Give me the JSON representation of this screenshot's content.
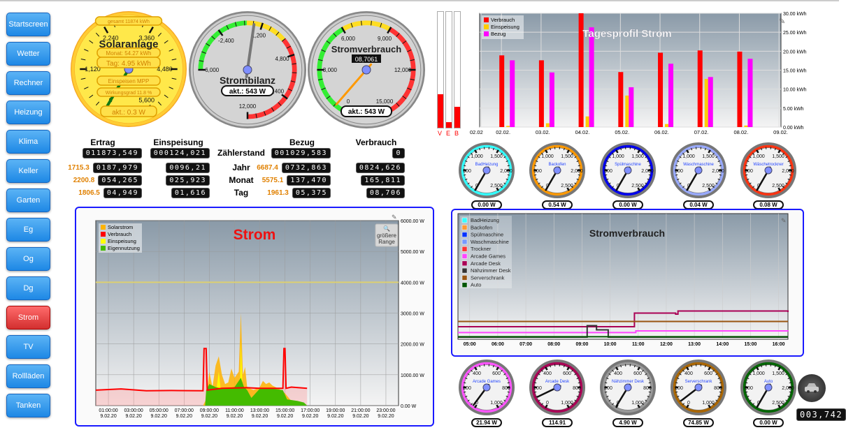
{
  "sidebar": {
    "items": [
      {
        "label": "Startscreen"
      },
      {
        "label": "Wetter"
      },
      {
        "label": "Rechner"
      },
      {
        "label": "Heizung"
      },
      {
        "label": "Klima"
      },
      {
        "label": "Keller"
      },
      {
        "label": "Garten"
      },
      {
        "label": "Eg"
      },
      {
        "label": "Og"
      },
      {
        "label": "Dg"
      },
      {
        "label": "Strom",
        "active": true
      },
      {
        "label": "TV"
      },
      {
        "label": "Rollläden"
      },
      {
        "label": "Tanken"
      }
    ]
  },
  "gauges": {
    "solar": {
      "title": "Solaranlage",
      "gesamt": "gesamt 11874 kWh",
      "monat": "Monat: 54.27 kWh",
      "tag": "Tag: 4.95 kWh",
      "mode": "Einspeisen MPP",
      "wirkungsgrad": "Wirkungsgrad 11.8 %",
      "akt": "akt.: 0.3 W",
      "value": 0.3,
      "min": 0,
      "max": 5600,
      "labels": [
        "0",
        "1,120",
        "2,240",
        "3,360",
        "4,480",
        "5,600"
      ]
    },
    "bilanz": {
      "title": "Strombilanz",
      "akt": "akt.: 543 W",
      "value": 543,
      "min": -6000,
      "max": 12000,
      "labels": [
        "-6,000",
        "-2,400",
        "1,200",
        "4,800",
        "8,400",
        "12,000"
      ]
    },
    "verbrauch": {
      "title": "Stromverbrauch",
      "counter": "08,7061",
      "akt": "akt.: 543 W",
      "value": 543,
      "min": 0,
      "max": 15000,
      "labels": [
        "0",
        "3,000",
        "6,000",
        "9,000",
        "12,000",
        "15,000"
      ]
    }
  },
  "veb": {
    "labels": [
      "V",
      "E",
      "B"
    ],
    "fill_percent": [
      29,
      5,
      18
    ],
    "color": "#ff0000"
  },
  "table": {
    "headers": {
      "ertrag": "Ertrag",
      "einspeisung": "Einspeisung",
      "bezug": "Bezug",
      "verbrauch": "Verbrauch"
    },
    "rows": [
      {
        "label": "Zählerstand",
        "ertrag_side": "",
        "ertrag": "011873,549",
        "einspeisung": "000124,021",
        "bezug_side": "",
        "bezug": "001029,583",
        "verbrauch": "0"
      },
      {
        "label": "Jahr",
        "ertrag_side": "1715.3",
        "ertrag": "0187,979",
        "einspeisung": "0096,21",
        "bezug_side": "6687.4",
        "bezug": "0732,863",
        "verbrauch": "0824,626"
      },
      {
        "label": "Monat",
        "ertrag_side": "2200.8",
        "ertrag": "054,265",
        "einspeisung": "025,923",
        "bezug_side": "5575.1",
        "bezug": "137,470",
        "verbrauch": "165,811"
      },
      {
        "label": "Tag",
        "ertrag_side": "1806.5",
        "ertrag": "04,949",
        "einspeisung": "01,616",
        "bezug_side": "1961.3",
        "bezug": "05,375",
        "verbrauch": "08,706"
      }
    ]
  },
  "devices": [
    {
      "name": "BadHeizung",
      "value_label": "0.00 W",
      "value": 0,
      "max": 2500,
      "ring": "#33ffff",
      "labels": [
        "0",
        "500",
        "1,000",
        "1,500",
        "2,000",
        "2,500"
      ]
    },
    {
      "name": "Backofen",
      "value_label": "0.54 W",
      "value": 0.54,
      "max": 2500,
      "ring": "#ff9900",
      "labels": [
        "0",
        "500",
        "1,000",
        "1,500",
        "2,000",
        "2,500"
      ]
    },
    {
      "name": "Spülmaschine",
      "value_label": "0.00 W",
      "value": 0,
      "max": 2500,
      "ring": "#0000ee",
      "labels": [
        "0",
        "500",
        "1,000",
        "1,500",
        "2,000",
        "2,500"
      ]
    },
    {
      "name": "Waschmaschine",
      "value_label": "0.04 W",
      "value": 0.04,
      "max": 2500,
      "ring": "#99aaff",
      "labels": [
        "0",
        "500",
        "1,000",
        "1,500",
        "2,000",
        "2,500"
      ]
    },
    {
      "name": "Wäschetrockner",
      "value_label": "0.08 W",
      "value": 0.08,
      "max": 2500,
      "ring": "#ff3311",
      "labels": [
        "0",
        "500",
        "1,000",
        "1,500",
        "2,000",
        "2,500"
      ]
    },
    {
      "name": "Arcade Games",
      "value_label": "21.94 W",
      "value": 21.94,
      "max": 1000,
      "ring": "#ff55ff",
      "labels": [
        "0",
        "200",
        "400",
        "600",
        "800",
        "1,000"
      ]
    },
    {
      "name": "Arcade Desk",
      "value_label": "114.91",
      "value": 114.91,
      "max": 1000,
      "ring": "#aa0055",
      "labels": [
        "0",
        "200",
        "400",
        "600",
        "800",
        "1,000"
      ]
    },
    {
      "name": "Nähzimmer Desk",
      "value_label": "4.90 W",
      "value": 4.9,
      "max": 1000,
      "ring": "#999999",
      "labels": [
        "0",
        "200",
        "400",
        "600",
        "800",
        "1,000"
      ]
    },
    {
      "name": "Serverschrank",
      "value_label": "74.85 W",
      "value": 74.85,
      "max": 1000,
      "ring": "#aa6600",
      "labels": [
        "0",
        "200",
        "400",
        "600",
        "800",
        "1,000"
      ]
    },
    {
      "name": "Auto",
      "value_label": "0.00 W",
      "value": 0,
      "max": 2500,
      "ring": "#006600",
      "labels": [
        "0",
        "500",
        "1,000",
        "1,500",
        "2,000",
        "2,500"
      ]
    }
  ],
  "auto_counter": "003,742",
  "icons": {
    "car": "car-icon",
    "edit": "pencil-icon",
    "zoom": "magnifier-icon"
  },
  "chart_data": [
    {
      "type": "bar",
      "title": "Tagesprofil Strom",
      "categories": [
        "02.02.",
        "03.02.",
        "04.02.",
        "05.02.",
        "06.02.",
        "07.02.",
        "08.02."
      ],
      "x_tick_labels": [
        "02.02",
        "02.02.",
        "03.02.",
        "04.02.",
        "05.02.",
        "06.02.",
        "07.02.",
        "08.02.",
        "09.02."
      ],
      "series": [
        {
          "name": "Verbrauch",
          "color": "#ff0000",
          "values": [
            18.9,
            17.6,
            30.0,
            14.5,
            19.6,
            20.2,
            19.9
          ]
        },
        {
          "name": "Einspeisung",
          "color": "#ffcc00",
          "values": [
            0.3,
            1.0,
            2.8,
            8.3,
            0.8,
            12.7,
            0.4
          ]
        },
        {
          "name": "Bezug",
          "color": "#ff00ff",
          "values": [
            17.6,
            14.4,
            26.3,
            10.5,
            16.7,
            13.2,
            18.0
          ]
        }
      ],
      "ylim": [
        0,
        30
      ],
      "y_ticks": [
        "0.00 kWh",
        "5.00 kWh",
        "10.00 kWh",
        "15.00 kWh",
        "20.00 kWh",
        "25.00 kWh",
        "30.00 kWh"
      ],
      "legend": "top-left",
      "grid": true
    },
    {
      "type": "area",
      "title": "Strom",
      "button": "größere Range",
      "ylim": [
        0,
        6000
      ],
      "y_ticks": [
        "0.00 W",
        "1000.00 W",
        "2000.00 W",
        "3000.00 W",
        "4000.00 W",
        "5000.00 W",
        "6000.00 W"
      ],
      "x_ticks": [
        [
          "01:00:00",
          "9.02.20"
        ],
        [
          "03:00:00",
          "9.02.20"
        ],
        [
          "05:00:00",
          "9.02.20"
        ],
        [
          "07:00:00",
          "9.02.20"
        ],
        [
          "09:00:00",
          "9.02.20"
        ],
        [
          "11:00:00",
          "9.02.20"
        ],
        [
          "13:00:00",
          "9.02.20"
        ],
        [
          "15:00:00",
          "9.02.20"
        ],
        [
          "17:00:00",
          "9.02.20"
        ],
        [
          "19:00:00",
          "9.02.20"
        ],
        [
          "21:00:00",
          "9.02.20"
        ],
        [
          "23:00:00",
          "9.02.20"
        ]
      ],
      "xlim": [
        "00:00",
        "24:00"
      ],
      "threshold": 4000,
      "legend": "top-left",
      "grid": true,
      "series": [
        {
          "name": "Solarstrom",
          "color": "#ffb300",
          "points": [
            [
              "00:00",
              0
            ],
            [
              "08:30",
              0
            ],
            [
              "08:45",
              200
            ],
            [
              "09:00",
              1100
            ],
            [
              "09:15",
              600
            ],
            [
              "09:30",
              1300
            ],
            [
              "09:45",
              1600
            ],
            [
              "10:00",
              1000
            ],
            [
              "10:15",
              700
            ],
            [
              "10:30",
              750
            ],
            [
              "10:45",
              1200
            ],
            [
              "11:00",
              900
            ],
            [
              "11:20",
              1100
            ],
            [
              "11:30",
              3000
            ],
            [
              "11:40",
              1000
            ],
            [
              "11:50",
              1250
            ],
            [
              "12:00",
              600
            ],
            [
              "12:30",
              500
            ],
            [
              "13:00",
              600
            ],
            [
              "13:15",
              800
            ],
            [
              "13:30",
              700
            ],
            [
              "13:45",
              750
            ],
            [
              "14:00",
              650
            ],
            [
              "14:30",
              550
            ],
            [
              "15:00",
              400
            ],
            [
              "15:30",
              150
            ],
            [
              "16:00",
              100
            ],
            [
              "16:30",
              0
            ],
            [
              "24:00",
              0
            ]
          ]
        },
        {
          "name": "Verbrauch",
          "color": "#ff0000",
          "points": [
            [
              "00:00",
              500
            ],
            [
              "02:00",
              540
            ],
            [
              "04:00",
              480
            ],
            [
              "06:00",
              490
            ],
            [
              "08:30",
              480
            ],
            [
              "08:35",
              1850
            ],
            [
              "08:45",
              1850
            ],
            [
              "08:50",
              500
            ],
            [
              "10:00",
              560
            ],
            [
              "12:00",
              580
            ],
            [
              "13:00",
              560
            ],
            [
              "14:50",
              560
            ],
            [
              "14:55",
              1850
            ],
            [
              "15:00",
              1850
            ],
            [
              "15:05",
              560
            ],
            [
              "15:30",
              600
            ],
            [
              "16:45",
              560
            ]
          ]
        },
        {
          "name": "Einspeisung",
          "color": "#ffff00",
          "points": [
            [
              "00:00",
              0
            ],
            [
              "09:00",
              0
            ],
            [
              "09:30",
              300
            ],
            [
              "09:45",
              1100
            ],
            [
              "10:00",
              150
            ],
            [
              "11:25",
              200
            ],
            [
              "11:30",
              2100
            ],
            [
              "11:40",
              200
            ],
            [
              "12:00",
              0
            ],
            [
              "24:00",
              0
            ]
          ]
        },
        {
          "name": "Eigennutzung",
          "color": "#44bb00",
          "points": [
            [
              "00:00",
              0
            ],
            [
              "08:40",
              0
            ],
            [
              "08:45",
              500
            ],
            [
              "09:00",
              700
            ],
            [
              "09:30",
              600
            ],
            [
              "10:00",
              550
            ],
            [
              "11:00",
              600
            ],
            [
              "11:30",
              900
            ],
            [
              "11:45",
              600
            ],
            [
              "12:00",
              500
            ],
            [
              "12:20",
              250
            ],
            [
              "13:00",
              550
            ],
            [
              "14:00",
              550
            ],
            [
              "14:50",
              500
            ],
            [
              "15:10",
              200
            ],
            [
              "16:00",
              150
            ],
            [
              "16:30",
              100
            ],
            [
              "16:45",
              0
            ],
            [
              "24:00",
              0
            ]
          ]
        }
      ]
    },
    {
      "type": "line",
      "title": "Stromverbrauch",
      "x_ticks": [
        "05:00",
        "06:00",
        "07:00",
        "08:00",
        "09:00",
        "10:00",
        "11:00",
        "12:00",
        "13:00",
        "14:00",
        "15:00",
        "16:00"
      ],
      "xlim": [
        "04:35",
        "16:20"
      ],
      "legend": "top-left",
      "grid": true,
      "series": [
        {
          "name": "BadHeizung",
          "color": "#33ffff",
          "points": []
        },
        {
          "name": "Backofen",
          "color": "#ff9933",
          "points": []
        },
        {
          "name": "Spülmaschine",
          "color": "#0033ff",
          "points": []
        },
        {
          "name": "Waschmaschine",
          "color": "#7799ff",
          "points": []
        },
        {
          "name": "Trockner",
          "color": "#ff3333",
          "points": []
        },
        {
          "name": "Arcade Games",
          "color": "#ff44ff",
          "points": [
            [
              "04:35",
              22
            ],
            [
              "10:50",
              22
            ],
            [
              "10:55",
              30
            ],
            [
              "16:20",
              28
            ]
          ]
        },
        {
          "name": "Arcade Desk",
          "color": "#aa0055",
          "points": [
            [
              "04:35",
              50
            ],
            [
              "10:50",
              50
            ],
            [
              "10:52",
              115
            ],
            [
              "12:20",
              110
            ],
            [
              "12:25",
              125
            ],
            [
              "16:20",
              120
            ]
          ]
        },
        {
          "name": "Nähzimmer Desk",
          "color": "#333333",
          "points": [
            [
              "04:35",
              0
            ],
            [
              "09:10",
              0
            ],
            [
              "09:11",
              55
            ],
            [
              "09:30",
              55
            ],
            [
              "09:31",
              35
            ],
            [
              "09:55",
              35
            ],
            [
              "09:56",
              0
            ],
            [
              "16:20",
              0
            ]
          ]
        },
        {
          "name": "Serverschrank",
          "color": "#995511",
          "points": [
            [
              "04:35",
              75
            ],
            [
              "16:20",
              75
            ]
          ]
        },
        {
          "name": "Auto",
          "color": "#005500",
          "points": [
            [
              "04:35",
              2
            ],
            [
              "16:20",
              2
            ]
          ]
        }
      ]
    }
  ]
}
